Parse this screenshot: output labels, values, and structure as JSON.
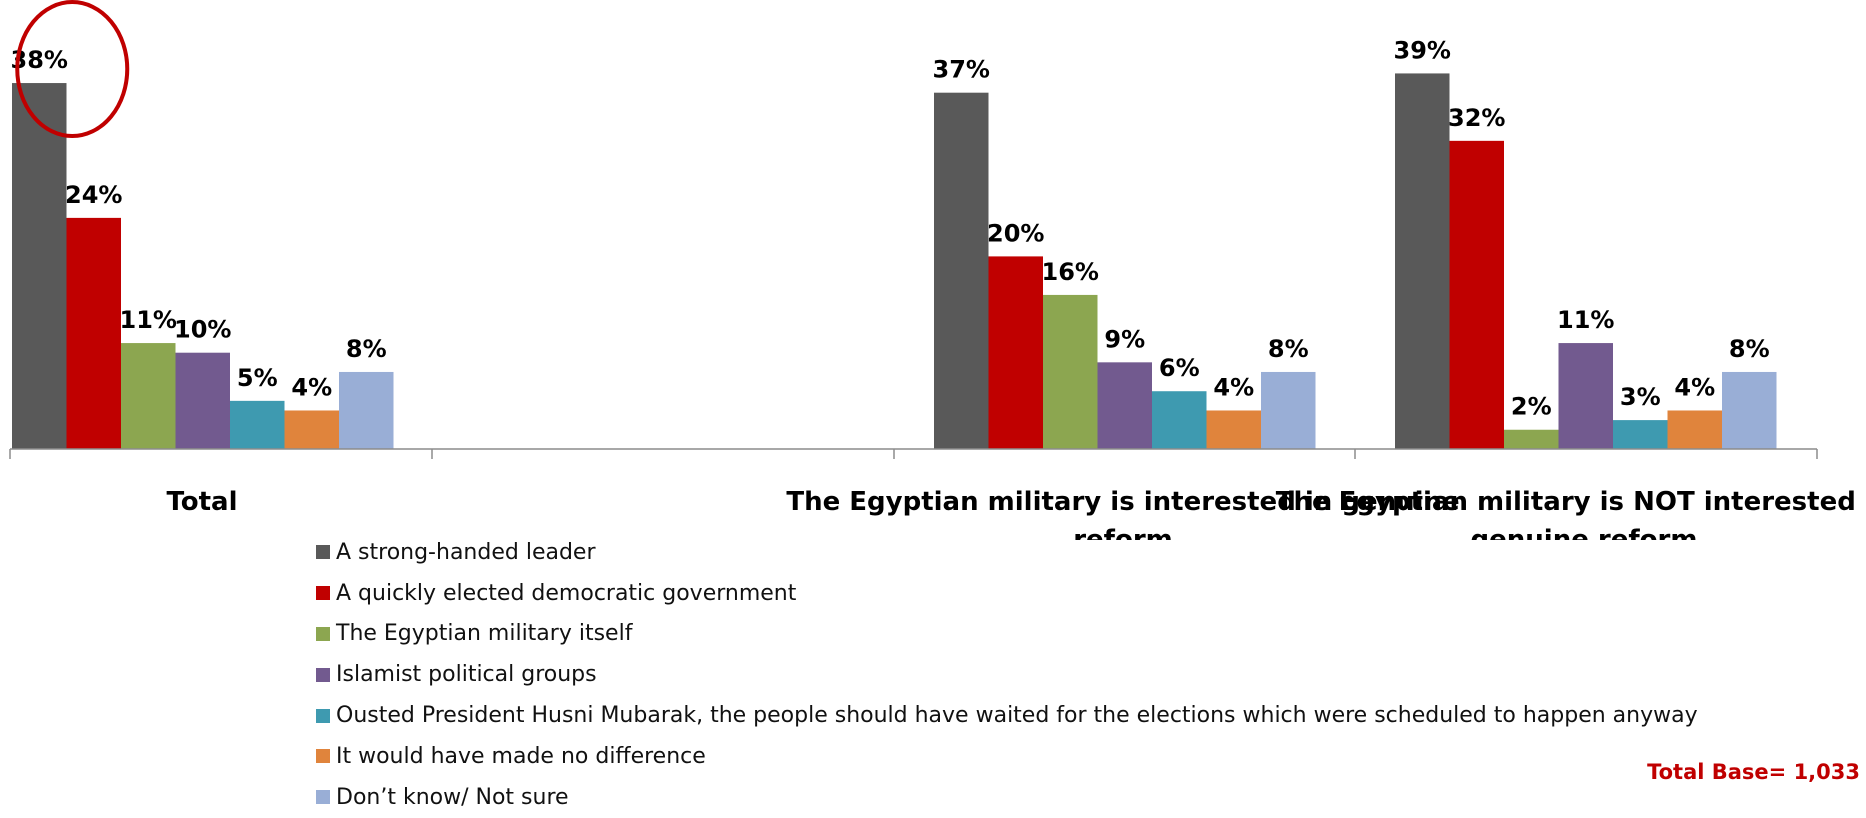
{
  "chart_data": {
    "type": "bar",
    "categories": [
      "Total",
      "",
      "The Egyptian military is interested in genuine reform",
      "The Egyptian military is NOT interested in genuine reform"
    ],
    "series": [
      {
        "name": "A strong-handed leader",
        "color": "#595959",
        "values": [
          38,
          null,
          37,
          39
        ]
      },
      {
        "name": "A quickly elected democratic government",
        "color": "#c00000",
        "values": [
          24,
          null,
          20,
          32
        ]
      },
      {
        "name": "The Egyptian military itself",
        "color": "#8ca650",
        "values": [
          11,
          null,
          16,
          2
        ]
      },
      {
        "name": "Islamist political groups",
        "color": "#725a8f",
        "values": [
          10,
          null,
          9,
          11
        ]
      },
      {
        "name": "Ousted President Husni Mubarak, the people should have waited for the elections which were scheduled to happen anyway",
        "color": "#3e9ab0",
        "values": [
          5,
          null,
          6,
          3
        ]
      },
      {
        "name": "It would have made no difference",
        "color": "#e0843c",
        "values": [
          4,
          null,
          4,
          4
        ]
      },
      {
        "name": "Don’t know/ Not sure",
        "color": "#99aed6",
        "values": [
          8,
          null,
          8,
          8
        ]
      }
    ],
    "value_suffix": "%",
    "ylim": [
      0,
      38
    ],
    "legend_position": "bottom",
    "grid": false,
    "highlight": {
      "category": "Total",
      "series": "A strong-handed leader",
      "shape": "red circle"
    }
  },
  "footnote": "Total Base= 1,033"
}
